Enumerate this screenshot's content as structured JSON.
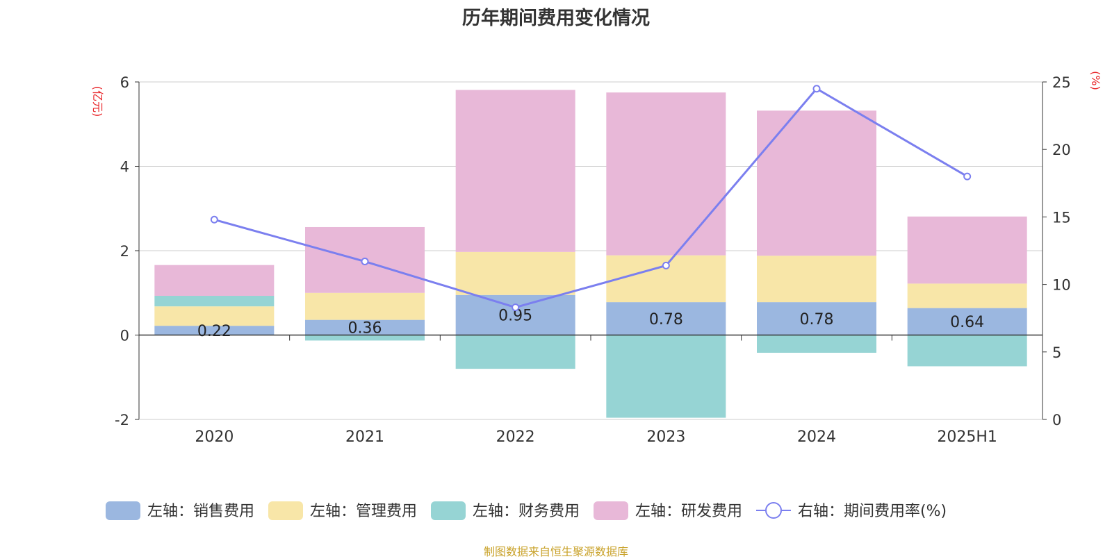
{
  "chart_data": {
    "type": "bar",
    "title": "历年期间费用变化情况",
    "categories": [
      "2020",
      "2021",
      "2022",
      "2023",
      "2024",
      "2025H1"
    ],
    "left_axis": {
      "label": "(亿元)",
      "ylim": [
        -2,
        6
      ],
      "ticks": [
        -2,
        0,
        2,
        4,
        6
      ]
    },
    "right_axis": {
      "label": "(%)",
      "ylim": [
        0,
        25
      ],
      "ticks": [
        0,
        5,
        10,
        15,
        20,
        25
      ]
    },
    "series": [
      {
        "name": "左轴：销售费用",
        "type": "bar",
        "axis": "left",
        "color": "#9bb7e0",
        "values": [
          0.22,
          0.36,
          0.95,
          0.78,
          0.78,
          0.64
        ],
        "data_labels": [
          "0.22",
          "0.36",
          "0.95",
          "0.78",
          "0.78",
          "0.64"
        ]
      },
      {
        "name": "左轴：管理费用",
        "type": "bar",
        "axis": "left",
        "color": "#f8e6a8",
        "values": [
          0.46,
          0.64,
          1.02,
          1.11,
          1.1,
          0.58
        ]
      },
      {
        "name": "左轴：财务费用",
        "type": "bar",
        "axis": "left",
        "color": "#96d4d4",
        "values": [
          0.25,
          -0.13,
          -0.8,
          -1.96,
          -0.42,
          -0.74
        ]
      },
      {
        "name": "左轴：研发费用",
        "type": "bar",
        "axis": "left",
        "color": "#e8b8d8",
        "values": [
          0.73,
          1.56,
          3.84,
          3.86,
          3.44,
          1.59
        ]
      },
      {
        "name": "右轴：期间费用率(%)",
        "type": "line",
        "axis": "right",
        "color": "#7b7fef",
        "values": [
          14.8,
          11.7,
          8.3,
          11.4,
          24.5,
          18.0
        ]
      }
    ],
    "grid": true,
    "legend": "bottom"
  },
  "footer": {
    "source": "制图数据来自恒生聚源数据库"
  }
}
